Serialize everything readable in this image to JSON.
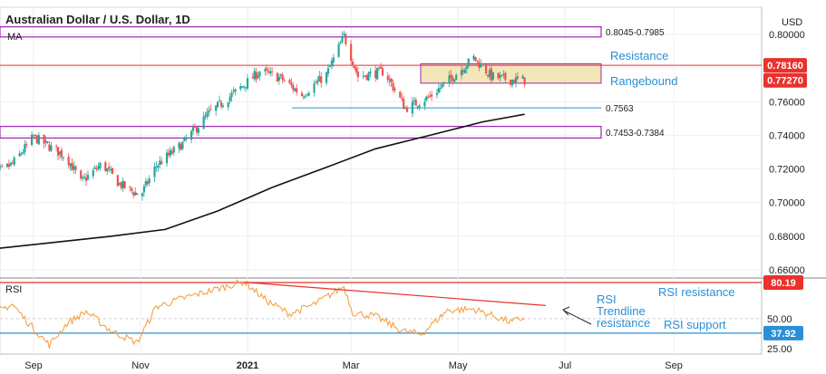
{
  "header": {
    "title": "Australian Dollar / U.S. Dollar, 1D",
    "indicator": "MA",
    "currency": "USD"
  },
  "chart_data": [
    {
      "type": "candlestick",
      "title": "Australian Dollar / U.S. Dollar, 1D",
      "ylabel": "USD",
      "ylim": [
        0.655,
        0.806
      ],
      "x_ticks": [
        "Sep",
        "Nov",
        "2021",
        "Mar",
        "May",
        "Jul",
        "Sep"
      ],
      "y_ticks": [
        "0.66000",
        "0.68000",
        "0.70000",
        "0.72000",
        "0.74000",
        "0.76000",
        "0.78000",
        "0.80000"
      ],
      "grid": true,
      "price_path": [
        {
          "date": "2020-08-05",
          "close": 0.7135
        },
        {
          "date": "2020-08-20",
          "close": 0.723
        },
        {
          "date": "2020-09-01",
          "close": 0.739
        },
        {
          "date": "2020-09-20",
          "close": 0.727
        },
        {
          "date": "2020-09-28",
          "close": 0.712
        },
        {
          "date": "2020-10-10",
          "close": 0.723
        },
        {
          "date": "2020-10-20",
          "close": 0.711
        },
        {
          "date": "2020-11-01",
          "close": 0.704
        },
        {
          "date": "2020-11-10",
          "close": 0.722
        },
        {
          "date": "2020-11-25",
          "close": 0.735
        },
        {
          "date": "2020-12-10",
          "close": 0.753
        },
        {
          "date": "2020-12-30",
          "close": 0.77
        },
        {
          "date": "2021-01-08",
          "close": 0.778
        },
        {
          "date": "2021-01-20",
          "close": 0.774
        },
        {
          "date": "2021-02-01",
          "close": 0.764
        },
        {
          "date": "2021-02-15",
          "close": 0.776
        },
        {
          "date": "2021-02-25",
          "close": 0.799
        },
        {
          "date": "2021-03-05",
          "close": 0.775
        },
        {
          "date": "2021-03-20",
          "close": 0.778
        },
        {
          "date": "2021-04-01",
          "close": 0.756
        },
        {
          "date": "2021-04-15",
          "close": 0.763
        },
        {
          "date": "2021-04-25",
          "close": 0.772
        },
        {
          "date": "2021-05-10",
          "close": 0.786
        },
        {
          "date": "2021-05-20",
          "close": 0.775
        },
        {
          "date": "2021-05-31",
          "close": 0.773
        },
        {
          "date": "2021-06-08",
          "close": 0.7727
        }
      ],
      "moving_average": [
        {
          "date": "2020-08-05",
          "value": 0.672
        },
        {
          "date": "2020-10-15",
          "value": 0.68
        },
        {
          "date": "2020-11-15",
          "value": 0.684
        },
        {
          "date": "2020-12-15",
          "value": 0.695
        },
        {
          "date": "2021-01-15",
          "value": 0.709
        },
        {
          "date": "2021-02-15",
          "value": 0.721
        },
        {
          "date": "2021-03-15",
          "value": 0.732
        },
        {
          "date": "2021-04-15",
          "value": 0.74
        },
        {
          "date": "2021-05-15",
          "value": 0.748
        },
        {
          "date": "2021-06-08",
          "value": 0.7525
        }
      ],
      "zones": [
        {
          "label": "0.8045-0.7985",
          "low": 0.7985,
          "high": 0.8045
        },
        {
          "label": "0.7453-0.7384",
          "low": 0.7384,
          "high": 0.7453
        }
      ],
      "range_box": {
        "label": "Rangebound",
        "low": 0.771,
        "high": 0.7825
      },
      "lines": [
        {
          "label": "Resistance",
          "value": 0.7816
        },
        {
          "label": "0.7563",
          "value": 0.7563
        }
      ],
      "price_tags": [
        {
          "text": "0.78160",
          "color": "#e8322b"
        },
        {
          "text": "0.77270",
          "color": "#e8322b"
        }
      ],
      "colors": {
        "up": "#26a69a",
        "down": "#ef5350",
        "ma": "#111111",
        "zone": "#9c27b0",
        "range_fill": "#f3e6b8",
        "resistance": "#e8322b",
        "support_line": "#2a8fd6"
      }
    },
    {
      "type": "line",
      "title": "RSI",
      "ylim": [
        25,
        80
      ],
      "y_ticks": [
        "25.00",
        "50.00"
      ],
      "series": [
        {
          "name": "RSI",
          "points": [
            {
              "date": "2020-08-05",
              "value": 52
            },
            {
              "date": "2020-08-20",
              "value": 62
            },
            {
              "date": "2020-08-28",
              "value": 48
            },
            {
              "date": "2020-09-10",
              "value": 28
            },
            {
              "date": "2020-09-20",
              "value": 46
            },
            {
              "date": "2020-10-01",
              "value": 56
            },
            {
              "date": "2020-10-15",
              "value": 40
            },
            {
              "date": "2020-10-30",
              "value": 30
            },
            {
              "date": "2020-11-10",
              "value": 60
            },
            {
              "date": "2020-11-25",
              "value": 67
            },
            {
              "date": "2020-12-10",
              "value": 73
            },
            {
              "date": "2020-12-30",
              "value": 81
            },
            {
              "date": "2021-01-12",
              "value": 65
            },
            {
              "date": "2021-01-25",
              "value": 54
            },
            {
              "date": "2021-02-08",
              "value": 62
            },
            {
              "date": "2021-02-25",
              "value": 77
            },
            {
              "date": "2021-03-02",
              "value": 55
            },
            {
              "date": "2021-03-15",
              "value": 52
            },
            {
              "date": "2021-03-30",
              "value": 40
            },
            {
              "date": "2021-04-10",
              "value": 37
            },
            {
              "date": "2021-04-25",
              "value": 57
            },
            {
              "date": "2021-05-10",
              "value": 58
            },
            {
              "date": "2021-05-20",
              "value": 53
            },
            {
              "date": "2021-05-31",
              "value": 47
            },
            {
              "date": "2021-06-08",
              "value": 51
            }
          ]
        }
      ],
      "levels": [
        {
          "label": "RSI resistance",
          "value": 80.19
        },
        {
          "label": "RSI support",
          "value": 37.92
        }
      ],
      "trendline": {
        "label": "RSI Trendline resistance",
        "from": {
          "date": "2020-12-30",
          "value": 80.5
        },
        "to": {
          "date": "2021-06-20",
          "value": 61
        }
      },
      "price_tags": [
        {
          "text": "80.19",
          "color": "#e8322b"
        },
        {
          "text": "37.92",
          "color": "#2a8fd6"
        }
      ],
      "colors": {
        "line": "#f5a144",
        "trendline": "#e8322b",
        "resistance": "#e8322b",
        "support": "#2a8fd6"
      }
    }
  ]
}
